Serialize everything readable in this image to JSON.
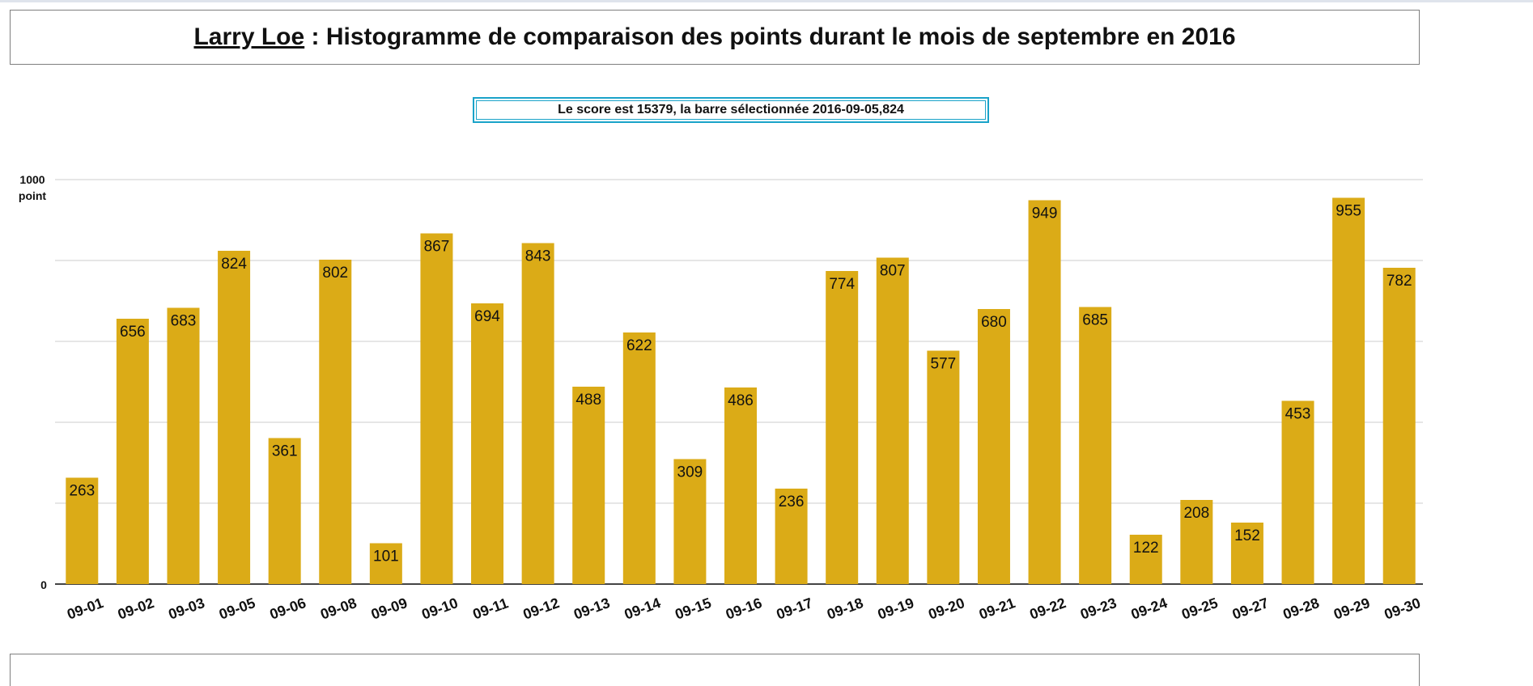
{
  "header": {
    "name": "Larry Loe",
    "separator": " : ",
    "title": "Histogramme de comparaison des points durant le mois de septembre en 2016"
  },
  "score_text": "Le score est 15379, la barre sélectionnée 2016-09-05,824",
  "chart_data": {
    "type": "bar",
    "categories": [
      "09-01",
      "09-02",
      "09-03",
      "09-05",
      "09-06",
      "09-08",
      "09-09",
      "09-10",
      "09-11",
      "09-12",
      "09-13",
      "09-14",
      "09-15",
      "09-16",
      "09-17",
      "09-18",
      "09-19",
      "09-20",
      "09-21",
      "09-22",
      "09-23",
      "09-24",
      "09-25",
      "09-27",
      "09-28",
      "09-29",
      "09-30"
    ],
    "values": [
      263,
      656,
      683,
      824,
      361,
      802,
      101,
      867,
      694,
      843,
      488,
      622,
      309,
      486,
      236,
      774,
      807,
      577,
      680,
      949,
      685,
      122,
      208,
      152,
      453,
      955,
      782
    ],
    "ylim": [
      0,
      1000
    ],
    "y_tick_top": "1000",
    "y_unit": "point",
    "y_tick_bottom": "0",
    "grid": true,
    "colors": {
      "bar": "#dbab17",
      "grid": "#cccccc",
      "axis": "#444444"
    }
  }
}
